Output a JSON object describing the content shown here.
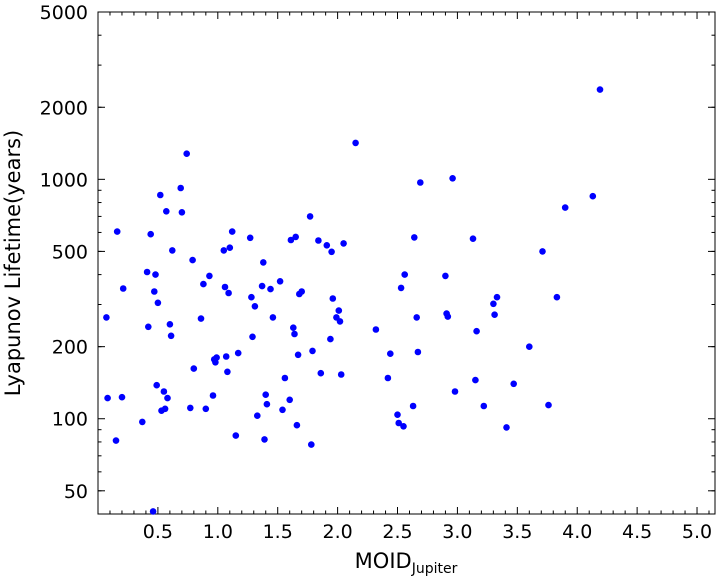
{
  "chart_data": {
    "type": "scatter",
    "title": "",
    "xlabel": "MOID",
    "xlabel_subscript": "Jupiter",
    "ylabel": "Lyapunov Lifetime(years)",
    "xlim": [
      0.0,
      5.15
    ],
    "ylim": [
      40,
      5000
    ],
    "yscale": "log",
    "grid": false,
    "x_ticks": [
      0.5,
      1.0,
      1.5,
      2.0,
      2.5,
      3.0,
      3.5,
      4.0,
      4.5,
      5.0
    ],
    "x_tick_labels": [
      "0.5",
      "1.0",
      "1.5",
      "2.0",
      "2.5",
      "3.0",
      "3.5",
      "4.0",
      "4.5",
      "5.0"
    ],
    "y_ticks": [
      50,
      100,
      200,
      500,
      1000,
      2000,
      5000
    ],
    "y_tick_labels": [
      "50",
      "100",
      "200",
      "500",
      "1000",
      "2000",
      "5000"
    ],
    "marker_color": "#0000ff",
    "series": [
      {
        "points": [
          [
            0.07,
            265
          ],
          [
            0.08,
            122
          ],
          [
            0.15,
            81
          ],
          [
            0.16,
            605
          ],
          [
            0.2,
            123
          ],
          [
            0.21,
            350
          ],
          [
            0.37,
            97
          ],
          [
            0.41,
            410
          ],
          [
            0.42,
            242
          ],
          [
            0.44,
            590
          ],
          [
            0.46,
            41
          ],
          [
            0.47,
            340
          ],
          [
            0.48,
            400
          ],
          [
            0.49,
            138
          ],
          [
            0.5,
            305
          ],
          [
            0.52,
            860
          ],
          [
            0.53,
            108
          ],
          [
            0.55,
            130
          ],
          [
            0.56,
            110
          ],
          [
            0.57,
            735
          ],
          [
            0.58,
            122
          ],
          [
            0.6,
            248
          ],
          [
            0.61,
            222
          ],
          [
            0.62,
            505
          ],
          [
            0.69,
            920
          ],
          [
            0.7,
            728
          ],
          [
            0.74,
            1280
          ],
          [
            0.77,
            111
          ],
          [
            0.79,
            460
          ],
          [
            0.8,
            162
          ],
          [
            0.86,
            262
          ],
          [
            0.88,
            365
          ],
          [
            0.9,
            110
          ],
          [
            0.93,
            395
          ],
          [
            0.96,
            125
          ],
          [
            0.97,
            177
          ],
          [
            0.98,
            172
          ],
          [
            0.99,
            180
          ],
          [
            1.05,
            505
          ],
          [
            1.06,
            355
          ],
          [
            1.07,
            182
          ],
          [
            1.08,
            157
          ],
          [
            1.09,
            335
          ],
          [
            1.1,
            518
          ],
          [
            1.12,
            605
          ],
          [
            1.15,
            85
          ],
          [
            1.17,
            188
          ],
          [
            1.27,
            570
          ],
          [
            1.28,
            322
          ],
          [
            1.29,
            220
          ],
          [
            1.31,
            295
          ],
          [
            1.33,
            103
          ],
          [
            1.37,
            358
          ],
          [
            1.38,
            450
          ],
          [
            1.39,
            82
          ],
          [
            1.4,
            126
          ],
          [
            1.41,
            115
          ],
          [
            1.44,
            348
          ],
          [
            1.46,
            265
          ],
          [
            1.52,
            375
          ],
          [
            1.54,
            109
          ],
          [
            1.56,
            148
          ],
          [
            1.6,
            120
          ],
          [
            1.61,
            558
          ],
          [
            1.63,
            240
          ],
          [
            1.64,
            226
          ],
          [
            1.65,
            575
          ],
          [
            1.66,
            94
          ],
          [
            1.67,
            185
          ],
          [
            1.68,
            332
          ],
          [
            1.7,
            340
          ],
          [
            1.77,
            700
          ],
          [
            1.78,
            78
          ],
          [
            1.79,
            192
          ],
          [
            1.84,
            555
          ],
          [
            1.86,
            155
          ],
          [
            1.91,
            530
          ],
          [
            1.94,
            215
          ],
          [
            1.95,
            498
          ],
          [
            1.96,
            318
          ],
          [
            1.99,
            265
          ],
          [
            2.01,
            283
          ],
          [
            2.02,
            255
          ],
          [
            2.03,
            153
          ],
          [
            2.05,
            540
          ],
          [
            2.15,
            1420
          ],
          [
            2.32,
            236
          ],
          [
            2.42,
            148
          ],
          [
            2.44,
            187
          ],
          [
            2.5,
            104
          ],
          [
            2.51,
            96
          ],
          [
            2.53,
            352
          ],
          [
            2.55,
            93
          ],
          [
            2.56,
            400
          ],
          [
            2.63,
            113
          ],
          [
            2.64,
            572
          ],
          [
            2.66,
            265
          ],
          [
            2.67,
            190
          ],
          [
            2.69,
            970
          ],
          [
            2.9,
            395
          ],
          [
            2.91,
            275
          ],
          [
            2.92,
            267
          ],
          [
            2.96,
            1010
          ],
          [
            2.98,
            130
          ],
          [
            3.13,
            565
          ],
          [
            3.15,
            145
          ],
          [
            3.16,
            232
          ],
          [
            3.22,
            113
          ],
          [
            3.3,
            302
          ],
          [
            3.31,
            272
          ],
          [
            3.33,
            322
          ],
          [
            3.41,
            92
          ],
          [
            3.47,
            140
          ],
          [
            3.6,
            200
          ],
          [
            3.71,
            500
          ],
          [
            3.76,
            114
          ],
          [
            3.83,
            322
          ],
          [
            3.9,
            762
          ],
          [
            4.13,
            850
          ],
          [
            4.19,
            2370
          ]
        ]
      }
    ]
  }
}
